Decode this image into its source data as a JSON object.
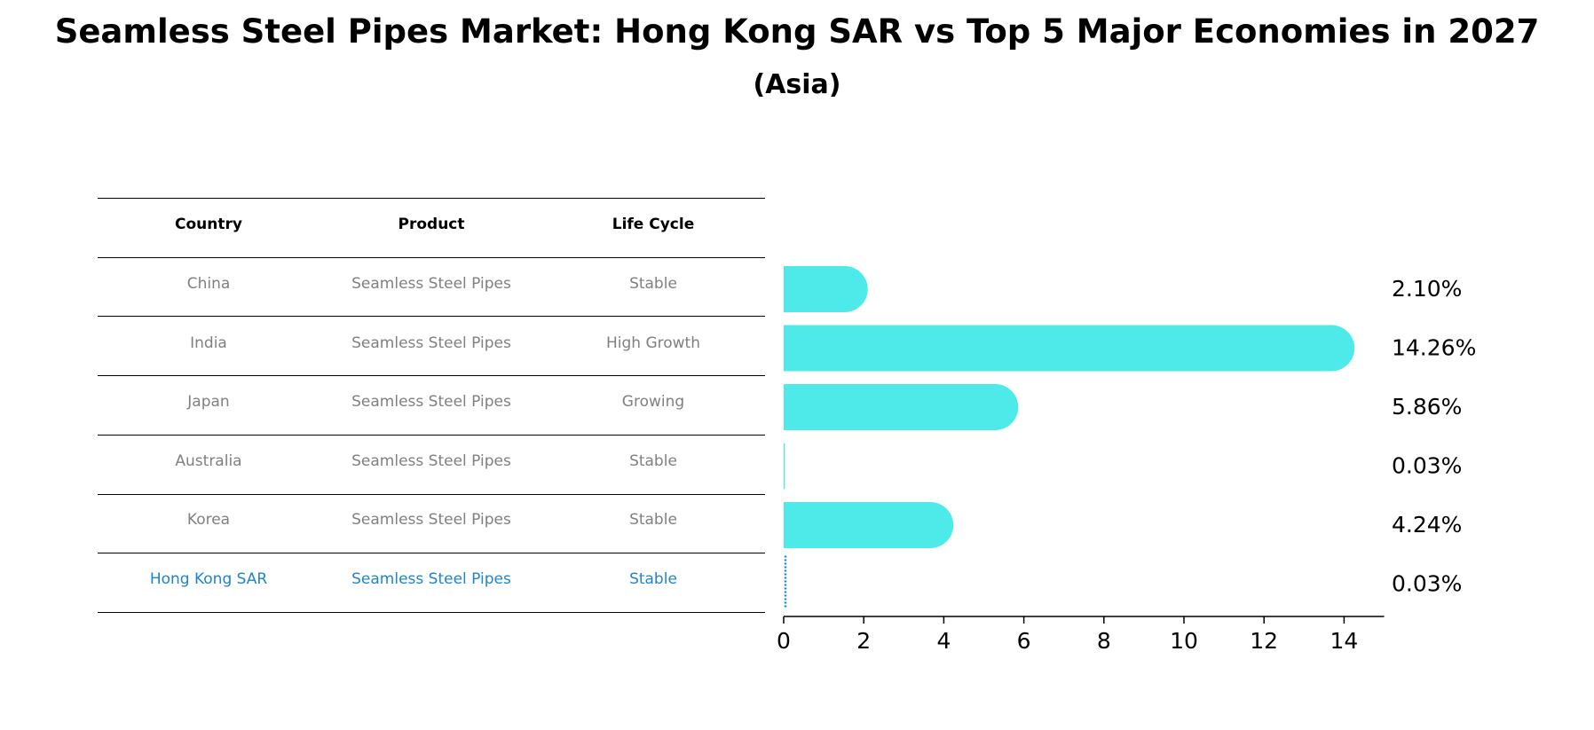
{
  "title": "Seamless Steel Pipes Market: Hong Kong SAR vs Top 5 Major Economies in 2027",
  "subtitle": "(Asia)",
  "table": {
    "headers": [
      "Country",
      "Product",
      "Life Cycle"
    ],
    "rows": [
      {
        "country": "China",
        "product": "Seamless Steel Pipes",
        "life_cycle": "Stable"
      },
      {
        "country": "India",
        "product": "Seamless Steel Pipes",
        "life_cycle": "High Growth"
      },
      {
        "country": "Japan",
        "product": "Seamless Steel Pipes",
        "life_cycle": "Growing"
      },
      {
        "country": "Australia",
        "product": "Seamless Steel Pipes",
        "life_cycle": "Stable"
      },
      {
        "country": "Korea",
        "product": "Seamless Steel Pipes",
        "life_cycle": "Stable"
      },
      {
        "country": "Hong Kong SAR",
        "product": "Seamless Steel Pipes",
        "life_cycle": "Stable"
      }
    ]
  },
  "colors": {
    "bar": "#4eeaea",
    "highlight": "#1f85c9",
    "muted_text": "#808080"
  },
  "chart_data": {
    "type": "bar",
    "orientation": "horizontal",
    "categories": [
      "China",
      "India",
      "Japan",
      "Australia",
      "Korea",
      "Hong Kong SAR"
    ],
    "values": [
      2.1,
      14.26,
      5.86,
      0.03,
      4.24,
      0.03
    ],
    "value_labels": [
      "2.10%",
      "14.26%",
      "5.86%",
      "0.03%",
      "4.24%",
      "0.03%"
    ],
    "highlight_category": "Hong Kong SAR",
    "xlim": [
      0,
      15
    ],
    "xticks": [
      0,
      2,
      4,
      6,
      8,
      10,
      12,
      14
    ],
    "xlabel": "",
    "ylabel": "",
    "grid": false
  }
}
